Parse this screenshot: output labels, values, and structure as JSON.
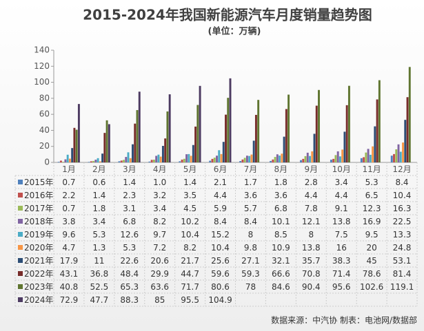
{
  "chart_data": {
    "type": "bar",
    "title": "2015-2024年我国新能源汽车月度销量趋势图",
    "subtitle": "(单位：万辆)",
    "source": "数据来源：中汽协   制表：电池网/数据部",
    "categories": [
      "1月",
      "2月",
      "3月",
      "4月",
      "5月",
      "6月",
      "7月",
      "8月",
      "9月",
      "10月",
      "11月",
      "12月"
    ],
    "ylim": [
      0,
      140
    ],
    "yticks": [
      0,
      20,
      40,
      60,
      80,
      100,
      120,
      140
    ],
    "grid": false,
    "series": [
      {
        "name": "2015年",
        "color": "#4f81bd",
        "values": [
          0.7,
          0.6,
          1.4,
          1.0,
          1.4,
          2.1,
          1.7,
          1.8,
          2.8,
          3.4,
          5.3,
          8.4
        ],
        "value_labels": [
          "0.7",
          "0.6",
          "1.4",
          "1.0",
          "1.4",
          "2.1",
          "1.7",
          "1.8",
          "2.8",
          "3.4",
          "5.3",
          "8.4"
        ]
      },
      {
        "name": "2016年",
        "color": "#c0504d",
        "values": [
          2.2,
          1.4,
          2.3,
          3.2,
          3.5,
          4.4,
          3.6,
          3.6,
          4.4,
          4.4,
          6.5,
          10.4
        ],
        "value_labels": [
          "2.2",
          "1.4",
          "2.3",
          "3.2",
          "3.5",
          "4.4",
          "3.6",
          "3.6",
          "4.4",
          "4.4",
          "6.5",
          "10.4"
        ]
      },
      {
        "name": "2017年",
        "color": "#9bbb59",
        "values": [
          0.7,
          1.8,
          3.1,
          3.4,
          4.5,
          5.9,
          5.7,
          6.8,
          7.8,
          9.1,
          12.3,
          16.3
        ],
        "value_labels": [
          "0.7",
          "1.8",
          "3.1",
          "3.4",
          "4.5",
          "5.9",
          "5.7",
          "6.8",
          "7.8",
          "9.1",
          "12.3",
          "16.3"
        ]
      },
      {
        "name": "2018年",
        "color": "#8064a2",
        "values": [
          3.8,
          3.4,
          6.8,
          8.2,
          10.2,
          8.4,
          8.4,
          10.1,
          12.1,
          13.8,
          16.9,
          22.5
        ],
        "value_labels": [
          "3.8",
          "3.4",
          "6.8",
          "8.2",
          "10.2",
          "8.4",
          "8.4",
          "10.1",
          "12.1",
          "13.8",
          "16.9",
          "22.5"
        ]
      },
      {
        "name": "2019年",
        "color": "#4bacc6",
        "values": [
          9.6,
          5.3,
          12.6,
          9.7,
          10.4,
          15.2,
          8,
          8.5,
          8,
          7.5,
          9.5,
          13.3
        ],
        "value_labels": [
          "9.6",
          "5.3",
          "12.6",
          "9.7",
          "10.4",
          "15.2",
          "8",
          "8.5",
          "8",
          "7.5",
          "9.5",
          "13.3"
        ]
      },
      {
        "name": "2020年",
        "color": "#f79646",
        "values": [
          4.7,
          1.3,
          5.3,
          7.2,
          8.2,
          10.4,
          9.8,
          10.9,
          13.8,
          16,
          20,
          24.8
        ],
        "value_labels": [
          "4.7",
          "1.3",
          "5.3",
          "7.2",
          "8.2",
          "10.4",
          "9.8",
          "10.9",
          "13.8",
          "16",
          "20",
          "24.8"
        ]
      },
      {
        "name": "2021年",
        "color": "#2c4d75",
        "values": [
          17.9,
          11,
          22.6,
          20.6,
          21.7,
          25.6,
          27.1,
          32.1,
          35.7,
          38.3,
          45,
          53.1
        ],
        "value_labels": [
          "17.9",
          "11",
          "22.6",
          "20.6",
          "21.7",
          "25.6",
          "27.1",
          "32.1",
          "35.7",
          "38.3",
          "45",
          "53.1"
        ]
      },
      {
        "name": "2022年",
        "color": "#772c2a",
        "values": [
          43.1,
          36.8,
          48.4,
          29.9,
          44.7,
          59.6,
          59.3,
          66.6,
          70.8,
          71.4,
          78.6,
          81.4
        ],
        "value_labels": [
          "43.1",
          "36.8",
          "48.4",
          "29.9",
          "44.7",
          "59.6",
          "59.3",
          "66.6",
          "70.8",
          "71.4",
          "78.6",
          "81.4"
        ]
      },
      {
        "name": "2023年",
        "color": "#5f7530",
        "values": [
          40.8,
          52.5,
          65.3,
          63.6,
          71.7,
          80.6,
          78,
          84.6,
          90.4,
          95.6,
          102.6,
          119.1
        ],
        "value_labels": [
          "40.8",
          "52.5",
          "65.3",
          "63.6",
          "71.7",
          "80.6",
          "78",
          "84.6",
          "90.4",
          "95.6",
          "102.6",
          "119.1"
        ]
      },
      {
        "name": "2024年",
        "color": "#4d3b62",
        "values": [
          72.9,
          47.7,
          88.3,
          85,
          95.5,
          104.9,
          null,
          null,
          null,
          null,
          null,
          null
        ],
        "value_labels": [
          "72.9",
          "47.7",
          "88.3",
          "85",
          "95.5",
          "104.9",
          null,
          null,
          null,
          null,
          null,
          null
        ]
      }
    ]
  }
}
